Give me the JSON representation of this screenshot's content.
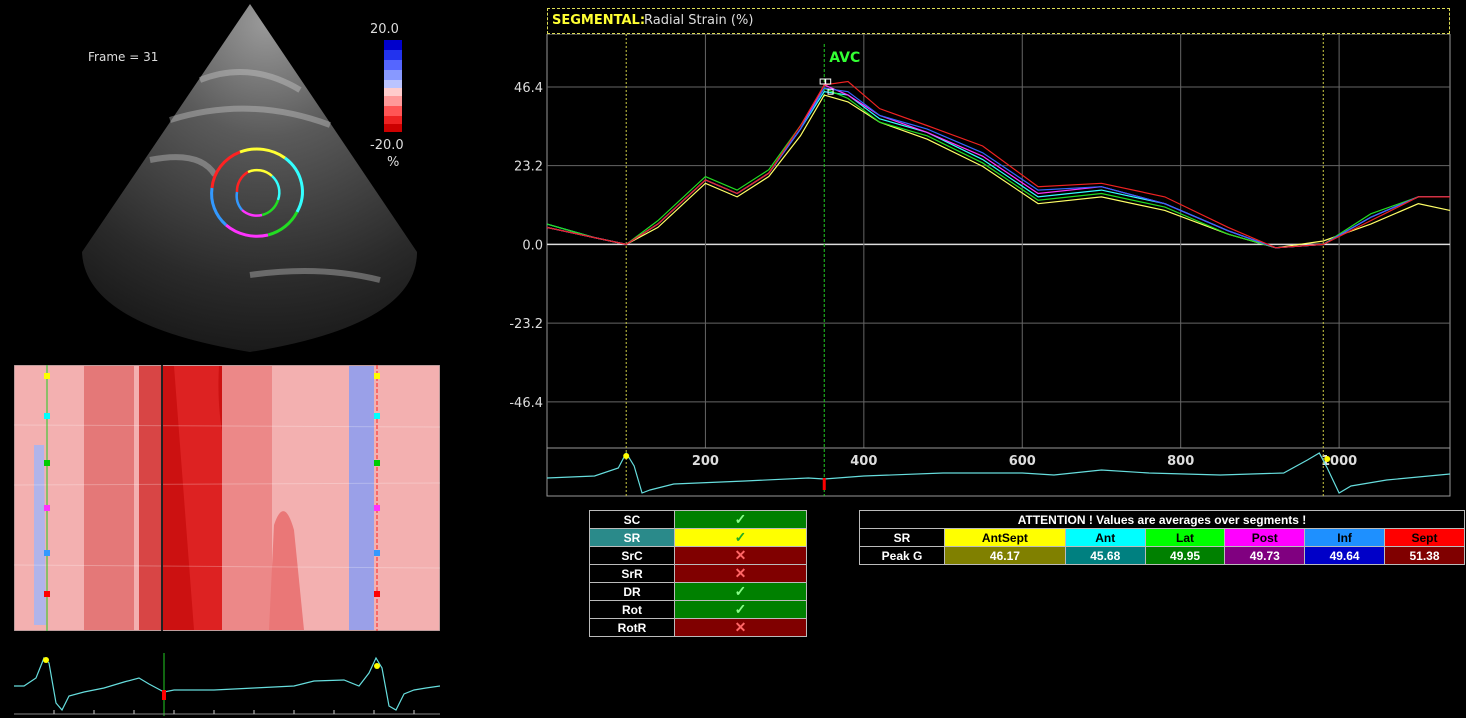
{
  "echo": {
    "frame_label": "Frame = 31",
    "scale_max": "20.0",
    "scale_min": "-20.0",
    "scale_unit": "%"
  },
  "chart_header": {
    "prefix": "SEGMENTAL:",
    "title": "Radial Strain (%)"
  },
  "chart_data": {
    "type": "line",
    "title": "Radial Strain (%)",
    "y_ticks": [
      "46.4",
      "23.2",
      "0.0",
      "-23.2",
      "-46.4"
    ],
    "x_ticks": [
      "200",
      "400",
      "600",
      "800",
      "1000"
    ],
    "ylim": [
      -60,
      62
    ],
    "xlim": [
      0,
      1140
    ],
    "marker_label": "AVC",
    "marker_x": 350,
    "x_markers": [
      100,
      980
    ],
    "grid": true,
    "series": [
      {
        "name": "AntSept",
        "color": "#ffff66",
        "x": [
          0,
          60,
          100,
          140,
          200,
          240,
          280,
          320,
          350,
          380,
          420,
          480,
          550,
          620,
          700,
          780,
          860,
          920,
          980,
          1040,
          1100,
          1140
        ],
        "y": [
          5,
          2,
          0,
          5,
          18,
          14,
          20,
          32,
          44,
          42,
          36,
          31,
          23,
          12,
          14,
          10,
          3,
          -1,
          1,
          6,
          12,
          10
        ]
      },
      {
        "name": "Ant",
        "color": "#33ffff",
        "x": [
          0,
          60,
          100,
          140,
          200,
          240,
          280,
          320,
          350,
          380,
          420,
          480,
          550,
          620,
          700,
          780,
          860,
          920,
          980,
          1040,
          1100,
          1140
        ],
        "y": [
          6,
          2,
          0,
          6,
          19,
          15,
          21,
          34,
          45,
          44,
          37,
          33,
          25,
          14,
          16,
          12,
          4,
          -1,
          0,
          8,
          14,
          14
        ]
      },
      {
        "name": "Lat",
        "color": "#22dd22",
        "x": [
          0,
          60,
          100,
          140,
          200,
          240,
          280,
          320,
          350,
          380,
          420,
          480,
          550,
          620,
          700,
          780,
          860,
          920,
          980,
          1040,
          1100,
          1140
        ],
        "y": [
          6,
          2,
          0,
          7,
          20,
          16,
          22,
          35,
          46,
          43,
          36,
          32,
          24,
          13,
          15,
          11,
          3,
          -1,
          0,
          9,
          14,
          14
        ]
      },
      {
        "name": "Post",
        "color": "#ff33ff",
        "x": [
          0,
          60,
          100,
          140,
          200,
          240,
          280,
          320,
          350,
          380,
          420,
          480,
          550,
          620,
          700,
          780,
          860,
          920,
          980,
          1040,
          1100,
          1140
        ],
        "y": [
          5,
          2,
          0,
          6,
          19,
          15,
          21,
          34,
          47,
          44,
          38,
          33,
          26,
          15,
          17,
          12,
          4,
          -1,
          0,
          8,
          14,
          14
        ]
      },
      {
        "name": "Inf",
        "color": "#3366ff",
        "x": [
          0,
          60,
          100,
          140,
          200,
          240,
          280,
          320,
          350,
          380,
          420,
          480,
          550,
          620,
          700,
          780,
          860,
          920,
          980,
          1040,
          1100,
          1140
        ],
        "y": [
          5,
          2,
          0,
          6,
          19,
          15,
          21,
          34,
          46,
          45,
          38,
          34,
          27,
          16,
          17,
          12,
          4,
          -1,
          0,
          8,
          14,
          14
        ]
      },
      {
        "name": "Sept",
        "color": "#ee2222",
        "x": [
          0,
          60,
          100,
          140,
          200,
          240,
          280,
          320,
          350,
          380,
          420,
          480,
          550,
          620,
          700,
          780,
          860,
          920,
          980,
          1040,
          1100,
          1140
        ],
        "y": [
          5,
          2,
          0,
          6,
          19,
          15,
          21,
          35,
          47,
          48,
          40,
          35,
          29,
          17,
          18,
          14,
          5,
          -1,
          0,
          7,
          14,
          14
        ]
      }
    ]
  },
  "status_table": {
    "rows": [
      {
        "label": "SC",
        "state": "check"
      },
      {
        "label": "SR",
        "state": "check",
        "selected": true
      },
      {
        "label": "SrC",
        "state": "cross"
      },
      {
        "label": "SrR",
        "state": "cross"
      },
      {
        "label": "DR",
        "state": "check"
      },
      {
        "label": "Rot",
        "state": "check"
      },
      {
        "label": "RotR",
        "state": "cross"
      }
    ],
    "check_glyph": "✓",
    "cross_glyph": "✕"
  },
  "values_table": {
    "attention": "ATTENTION !  Values are averages over segments !",
    "header_label": "SR",
    "row_label": "Peak G",
    "segments": [
      {
        "name": "AntSept",
        "value": "46.17",
        "head_color": "#ffff00",
        "cell_color": "#808000"
      },
      {
        "name": "Ant",
        "value": "45.68",
        "head_color": "#00ffff",
        "cell_color": "#008080"
      },
      {
        "name": "Lat",
        "value": "49.95",
        "head_color": "#00ff00",
        "cell_color": "#008000"
      },
      {
        "name": "Post",
        "value": "49.73",
        "head_color": "#ff00ff",
        "cell_color": "#800080"
      },
      {
        "name": "Inf",
        "value": "49.64",
        "head_color": "#1e90ff",
        "cell_color": "#0000c8"
      },
      {
        "name": "Sept",
        "value": "51.38",
        "head_color": "#ff0000",
        "cell_color": "#800000"
      }
    ]
  }
}
